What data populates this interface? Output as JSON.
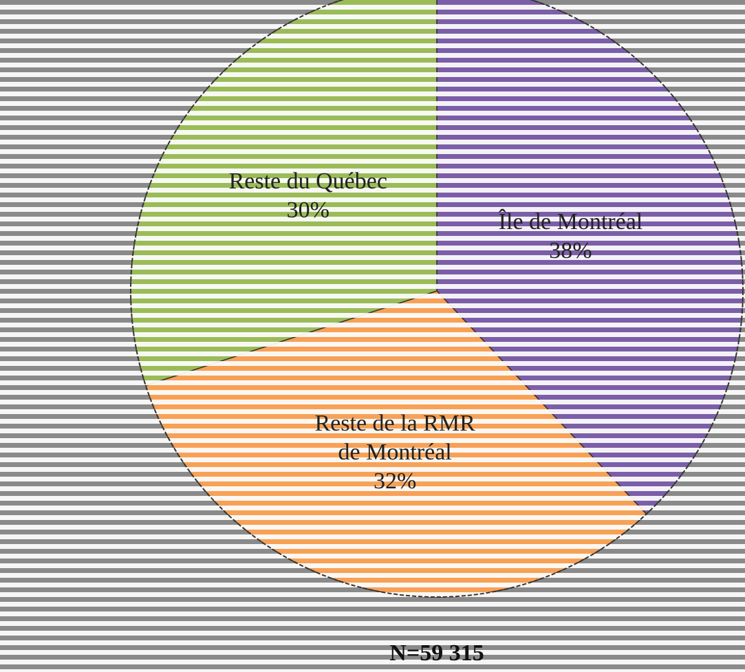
{
  "chart_data": {
    "type": "pie",
    "slices": [
      {
        "label_lines": [
          "Île de Montréal"
        ],
        "value_label": "38%",
        "value": 38,
        "color": "#7b5ea7"
      },
      {
        "label_lines": [
          "Reste de la RMR",
          "de Montréal"
        ],
        "value_label": "32%",
        "value": 32,
        "color": "#f7a157"
      },
      {
        "label_lines": [
          "Reste du Québec"
        ],
        "value_label": "30%",
        "value": 30,
        "color": "#9bbb59"
      }
    ],
    "total_label": "N=59 315",
    "start_angle_deg": 0,
    "direction": "clockwise",
    "background_color": "#8a8a8a",
    "stripe_color": "#ffffff",
    "outline_color": "#333333"
  }
}
